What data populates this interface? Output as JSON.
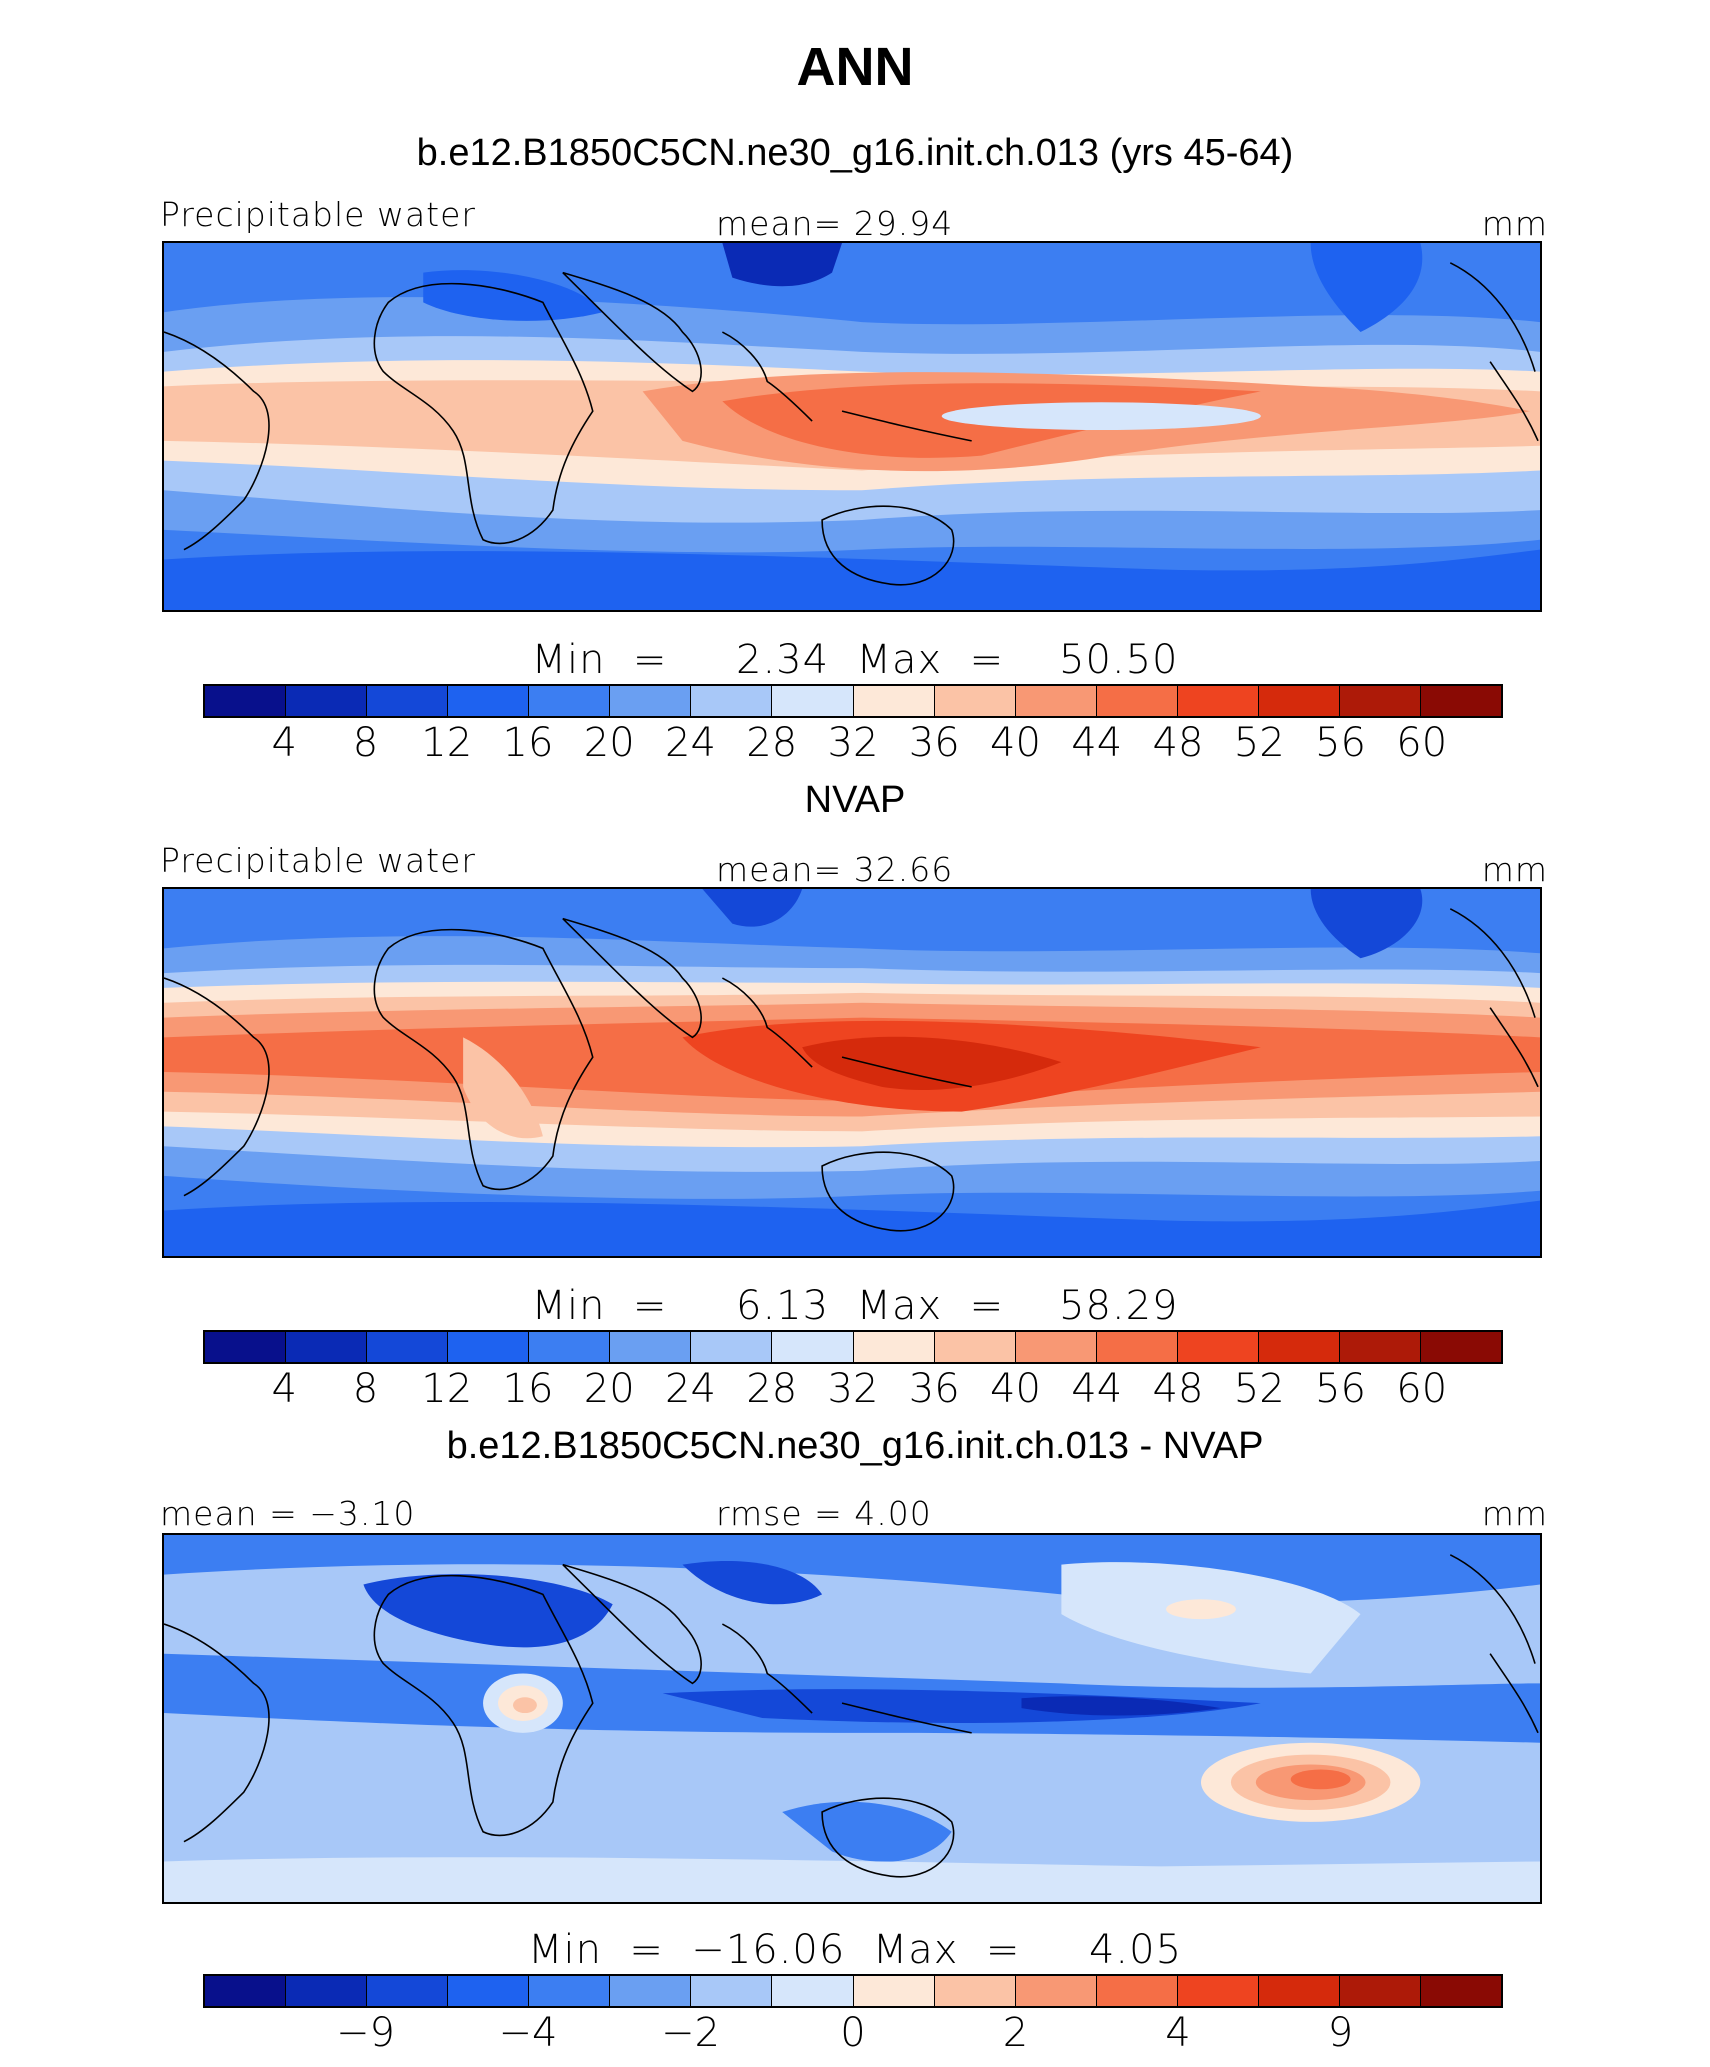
{
  "title": "ANN",
  "colors": {
    "scale": [
      "#08108c",
      "#0a2ab5",
      "#1448d8",
      "#1e62f0",
      "#3c7ef2",
      "#6a9ff2",
      "#a8c8f8",
      "#d6e6fb",
      "#fde8d8",
      "#fbc3a6",
      "#f89874",
      "#f56e46",
      "#ee4420",
      "#d52a0c",
      "#ad1a08",
      "#8a0a04"
    ]
  },
  "panels": [
    {
      "title": "b.e12.B1850C5CN.ne30_g16.init.ch.013 (yrs 45-64)",
      "left_label": "Precipitable  water",
      "center_label": "mean=   29.94",
      "right_label": "mm",
      "minmax": "Min  =     2.34  Max  =    50.50",
      "ticks": [
        "4",
        "8",
        "12",
        "16",
        "20",
        "24",
        "28",
        "32",
        "36",
        "40",
        "44",
        "48",
        "52",
        "56",
        "60"
      ]
    },
    {
      "title": "NVAP",
      "left_label": "Precipitable  water",
      "center_label": "mean=   32.66",
      "right_label": "mm",
      "minmax": "Min  =     6.13  Max  =    58.29",
      "ticks": [
        "4",
        "8",
        "12",
        "16",
        "20",
        "24",
        "28",
        "32",
        "36",
        "40",
        "44",
        "48",
        "52",
        "56",
        "60"
      ]
    },
    {
      "title": "b.e12.B1850C5CN.ne30_g16.init.ch.013 - NVAP",
      "left_label": "mean  =   −3.10",
      "center_label": "rmse  =     4.00",
      "right_label": "mm",
      "minmax": "Min  =  −16.06  Max  =     4.05",
      "ticks": [
        "−9",
        "",
        "−4",
        "",
        "−2",
        "",
        "0",
        "",
        "2",
        "",
        "4",
        "",
        "9"
      ]
    }
  ]
}
